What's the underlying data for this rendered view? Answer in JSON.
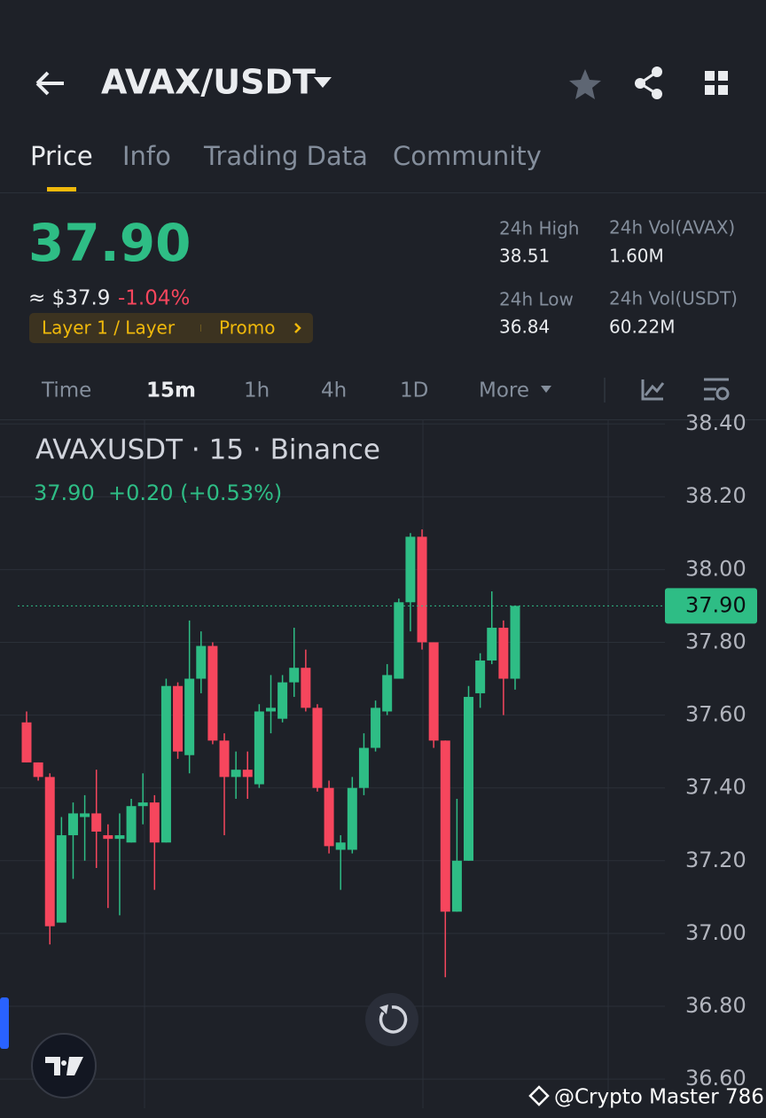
{
  "header": {
    "pair": "AVAX/USDT"
  },
  "tabs": [
    "Price",
    "Info",
    "Trading Data",
    "Community"
  ],
  "price": {
    "last": "37.90",
    "approx": "≈ $37.9",
    "change": "-1.04%",
    "tag": "Layer 1 / Layer",
    "promo": "Promo"
  },
  "stats": [
    {
      "label": "24h High",
      "value": "38.51"
    },
    {
      "label": "24h Vol(AVAX)",
      "value": "1.60M"
    },
    {
      "label": "24h Low",
      "value": "36.84"
    },
    {
      "label": "24h Vol(USDT)",
      "value": "60.22M"
    }
  ],
  "intervals": [
    "Time",
    "15m",
    "1h",
    "4h",
    "1D",
    "More"
  ],
  "watermark": "@Crypto Master 786",
  "chart_data": {
    "type": "candlestick",
    "title": "AVAXUSDT · 15 · Binance",
    "legend": {
      "close": "37.90",
      "change": "+0.20 (+0.53%)"
    },
    "up_color": "#2ebd85",
    "down_color": "#f6465d",
    "grid": true,
    "ylim": [
      36.52,
      38.41
    ],
    "yticks": [
      {
        "value": 38.4,
        "label": "38.40"
      },
      {
        "value": 38.2,
        "label": "38.20"
      },
      {
        "value": 38.0,
        "label": "38.00"
      },
      {
        "value": 37.8,
        "label": "37.80"
      },
      {
        "value": 37.6,
        "label": "37.60"
      },
      {
        "value": 37.4,
        "label": "37.40"
      },
      {
        "value": 37.2,
        "label": "37.20"
      },
      {
        "value": 37.0,
        "label": "37.00"
      },
      {
        "value": 36.8,
        "label": "36.80"
      },
      {
        "value": 36.6,
        "label": "36.60"
      }
    ],
    "last_price": {
      "value": 37.9,
      "label": "37.90"
    },
    "open": [
      37.58,
      37.47,
      37.43,
      37.03,
      37.27,
      37.32,
      37.33,
      37.27,
      37.26,
      37.25,
      37.35,
      37.36,
      37.25,
      37.68,
      37.49,
      37.7,
      37.79,
      37.53,
      37.43,
      37.45,
      37.41,
      37.61,
      37.59,
      37.69,
      37.73,
      37.62,
      37.4,
      37.23,
      37.23,
      37.4,
      37.51,
      37.61,
      37.7,
      37.91,
      38.09,
      37.8,
      37.53,
      37.06,
      37.2,
      37.66,
      37.75,
      37.84,
      37.7
    ],
    "high": [
      37.61,
      37.47,
      37.44,
      37.32,
      37.36,
      37.38,
      37.45,
      37.3,
      37.33,
      37.37,
      37.44,
      37.38,
      37.7,
      37.69,
      37.86,
      37.83,
      37.8,
      37.55,
      37.5,
      37.5,
      37.63,
      37.71,
      37.71,
      37.84,
      37.78,
      37.63,
      37.42,
      37.27,
      37.43,
      37.55,
      37.64,
      37.74,
      37.92,
      38.1,
      38.11,
      37.8,
      37.53,
      37.37,
      37.68,
      37.77,
      37.94,
      37.86,
      37.9
    ],
    "low": [
      37.47,
      37.42,
      36.97,
      37.03,
      37.15,
      37.2,
      37.18,
      37.07,
      37.05,
      37.25,
      37.3,
      37.12,
      37.25,
      37.48,
      37.44,
      37.66,
      37.52,
      37.27,
      37.37,
      37.37,
      37.4,
      37.55,
      37.58,
      37.65,
      37.61,
      37.39,
      37.22,
      37.12,
      37.22,
      37.38,
      37.5,
      37.6,
      37.7,
      37.83,
      37.78,
      37.51,
      36.88,
      37.06,
      37.2,
      37.62,
      37.74,
      37.6,
      37.67
    ],
    "close": [
      37.47,
      37.43,
      37.02,
      37.27,
      37.33,
      37.33,
      37.28,
      37.26,
      37.27,
      37.35,
      37.36,
      37.25,
      37.68,
      37.5,
      37.7,
      37.79,
      37.53,
      37.43,
      37.45,
      37.43,
      37.61,
      37.62,
      37.69,
      37.73,
      37.62,
      37.4,
      37.24,
      37.25,
      37.4,
      37.51,
      37.62,
      37.71,
      37.91,
      38.09,
      37.8,
      37.53,
      37.06,
      37.2,
      37.65,
      37.75,
      37.84,
      37.7,
      37.9
    ]
  }
}
